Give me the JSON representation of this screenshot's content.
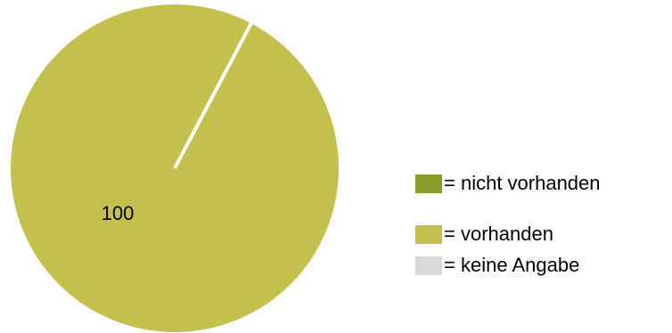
{
  "chart_data": {
    "type": "pie",
    "slices": [
      {
        "label": "nicht vorhanden",
        "value": 0,
        "color": "#8a9a2a"
      },
      {
        "label": "vorhanden",
        "value": 100,
        "color": "#c3c04e"
      },
      {
        "label": "keine Angabe",
        "value": 0,
        "color": "#d9d9d9"
      }
    ],
    "data_labels": [
      "100"
    ],
    "legend": {
      "placement": "right",
      "entries": [
        "= nicht vorhanden",
        "= vorhanden",
        "= keine Angabe"
      ]
    }
  }
}
